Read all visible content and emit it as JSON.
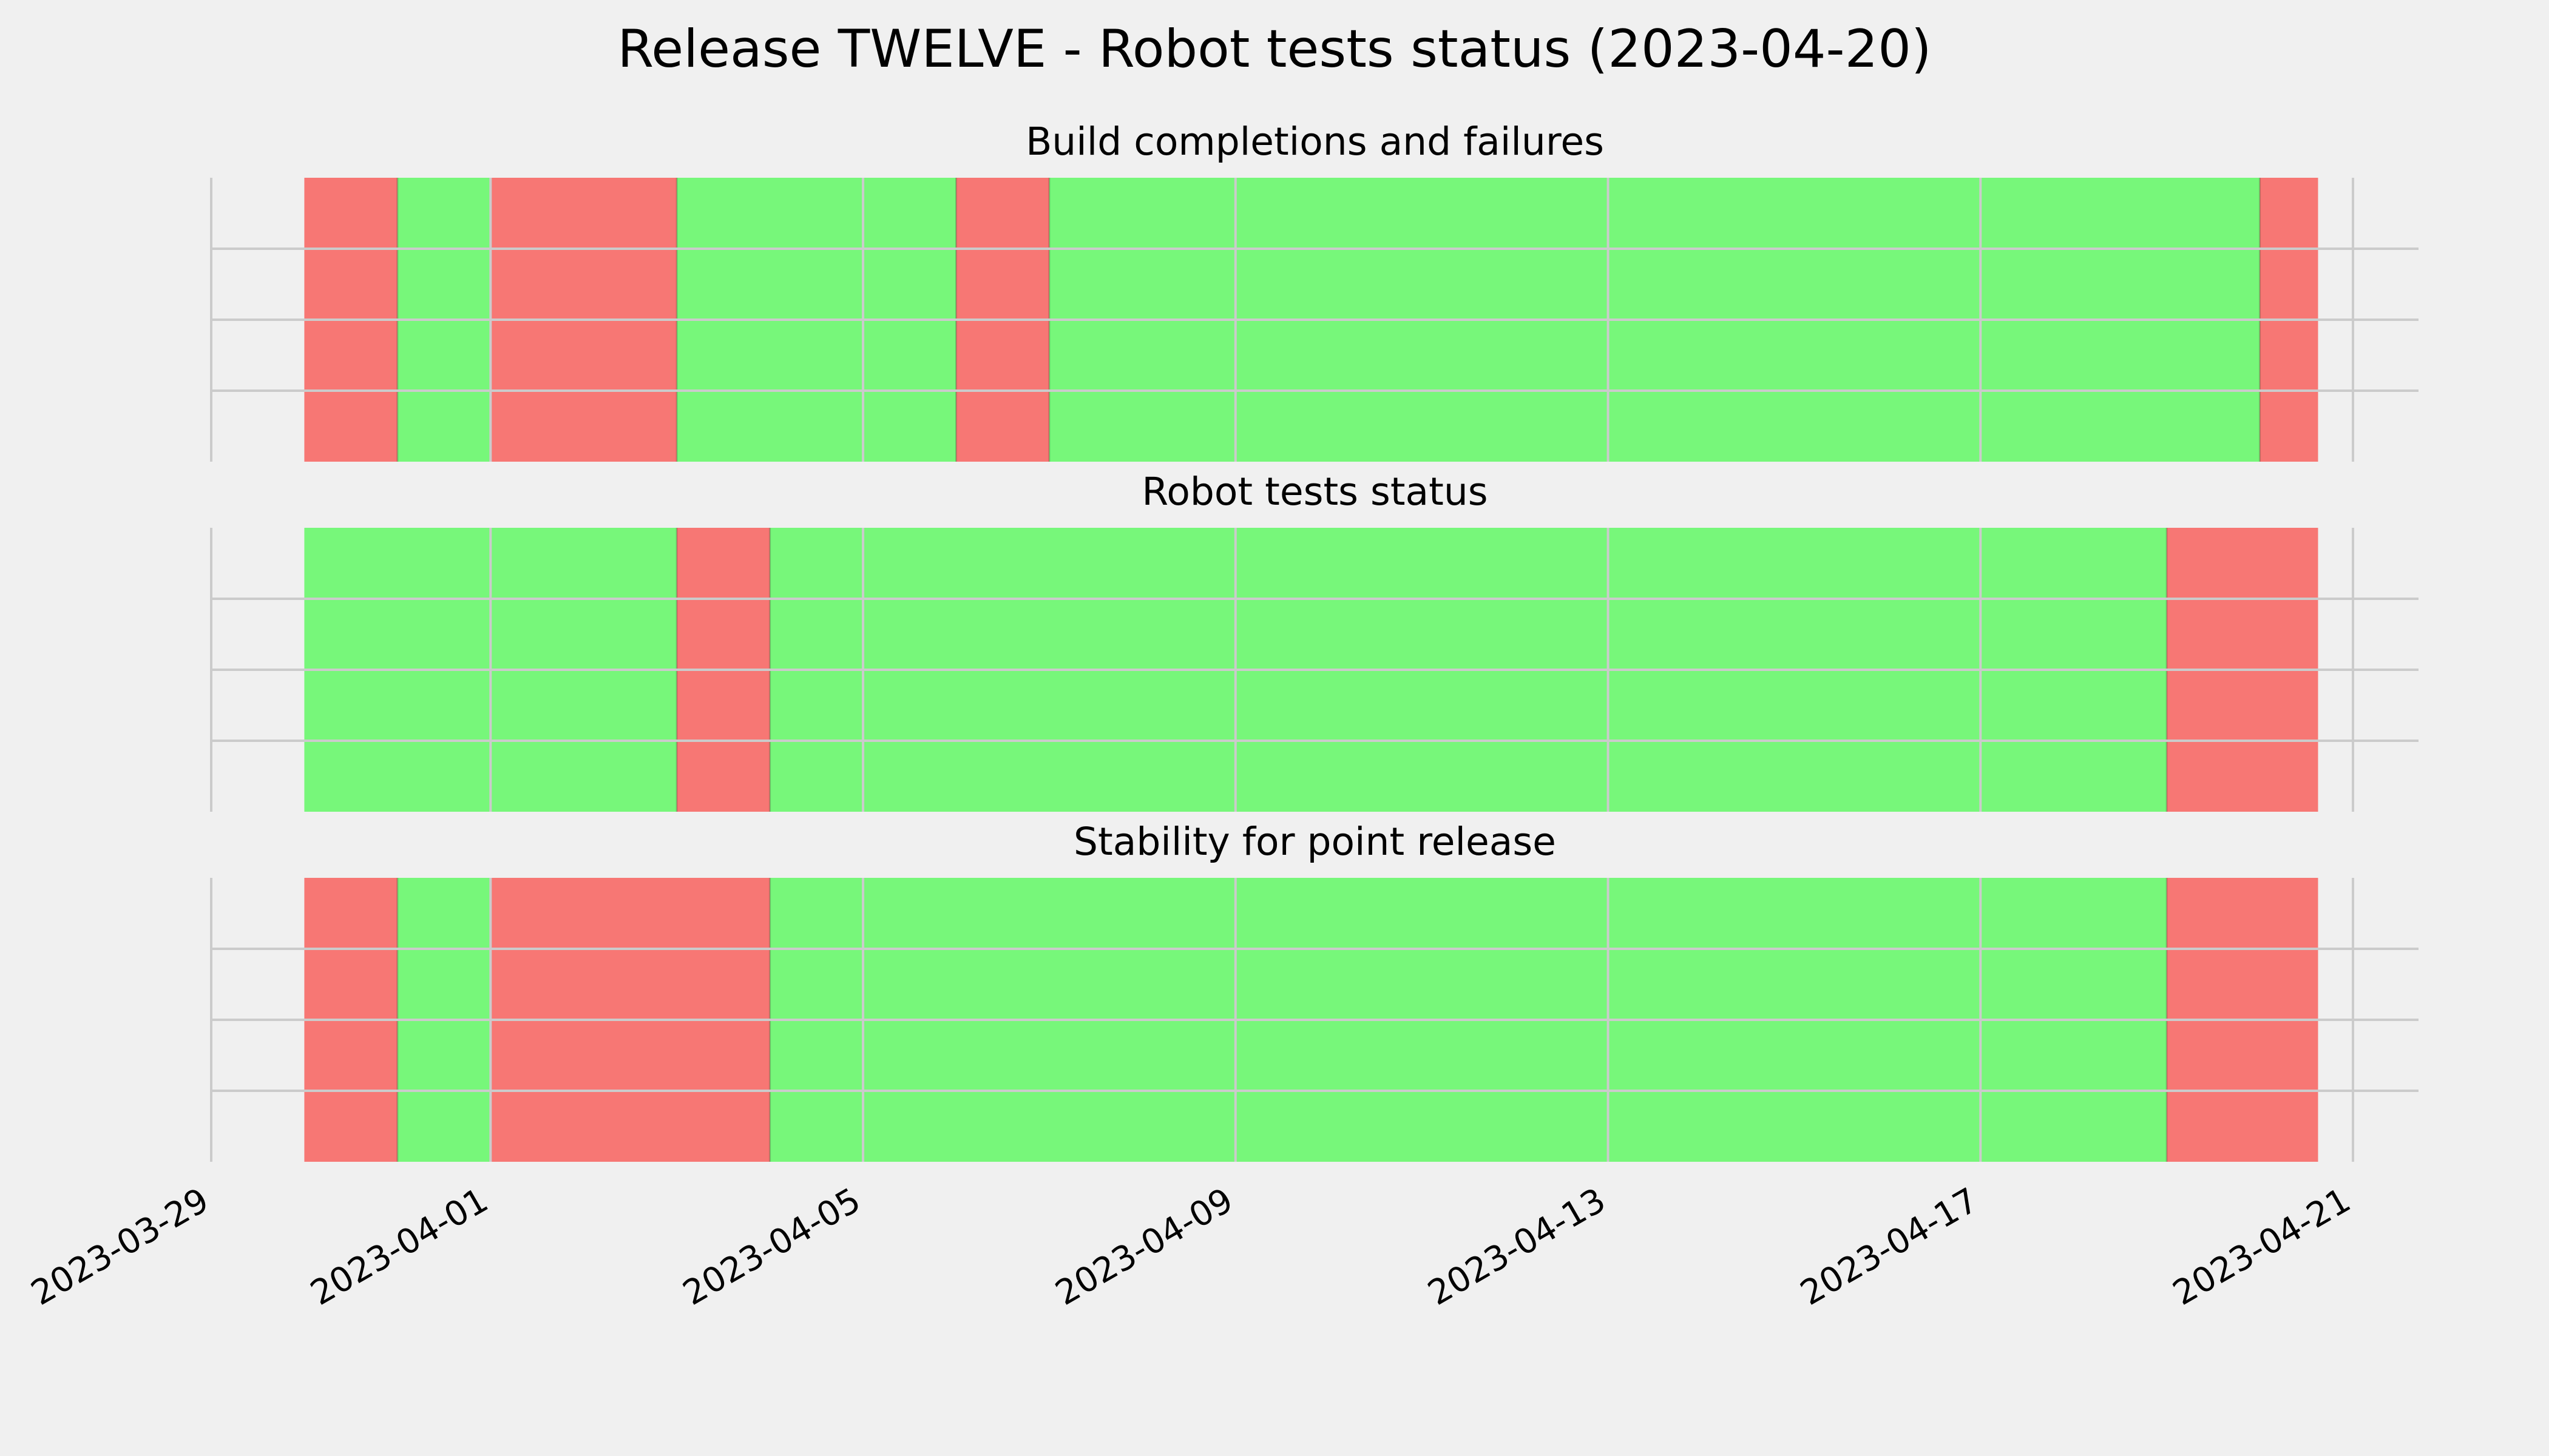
{
  "chart_data": {
    "type": "timeline",
    "title": "Release TWELVE - Robot tests status (2023-04-20)",
    "x_axis": {
      "type": "date",
      "range": [
        "2023-03-29",
        "2023-04-21"
      ],
      "tick_labels": [
        "2023-03-29",
        "2023-04-01",
        "2023-04-05",
        "2023-04-09",
        "2023-04-13",
        "2023-04-17",
        "2023-04-21"
      ]
    },
    "grid": true,
    "colors": {
      "pass": "#77f77a",
      "fail": "#f77774",
      "background": "#f0f0f0",
      "grid": "#cbcbcb"
    },
    "panels": [
      {
        "title": "Build completions and failures",
        "segments": [
          {
            "start": "2023-03-30",
            "end": "2023-03-31",
            "status": "fail"
          },
          {
            "start": "2023-03-31",
            "end": "2023-04-01",
            "status": "pass"
          },
          {
            "start": "2023-04-01",
            "end": "2023-04-03",
            "status": "fail"
          },
          {
            "start": "2023-04-03",
            "end": "2023-04-06",
            "status": "pass"
          },
          {
            "start": "2023-04-06",
            "end": "2023-04-07",
            "status": "fail"
          },
          {
            "start": "2023-04-07",
            "end": "2023-04-20",
            "status": "pass"
          },
          {
            "start": "2023-04-20",
            "end": "2023-04-20T15:00",
            "status": "fail"
          }
        ]
      },
      {
        "title": "Robot tests status",
        "segments": [
          {
            "start": "2023-03-30",
            "end": "2023-04-03",
            "status": "pass"
          },
          {
            "start": "2023-04-03",
            "end": "2023-04-04",
            "status": "fail"
          },
          {
            "start": "2023-04-04",
            "end": "2023-04-19",
            "status": "pass"
          },
          {
            "start": "2023-04-19",
            "end": "2023-04-20T15:00",
            "status": "fail"
          }
        ]
      },
      {
        "title": "Stability for point release",
        "segments": [
          {
            "start": "2023-03-30",
            "end": "2023-03-31",
            "status": "fail"
          },
          {
            "start": "2023-03-31",
            "end": "2023-04-01",
            "status": "pass"
          },
          {
            "start": "2023-04-01",
            "end": "2023-04-04",
            "status": "fail"
          },
          {
            "start": "2023-04-04",
            "end": "2023-04-19",
            "status": "pass"
          },
          {
            "start": "2023-04-19",
            "end": "2023-04-20T15:00",
            "status": "fail"
          }
        ]
      }
    ]
  }
}
